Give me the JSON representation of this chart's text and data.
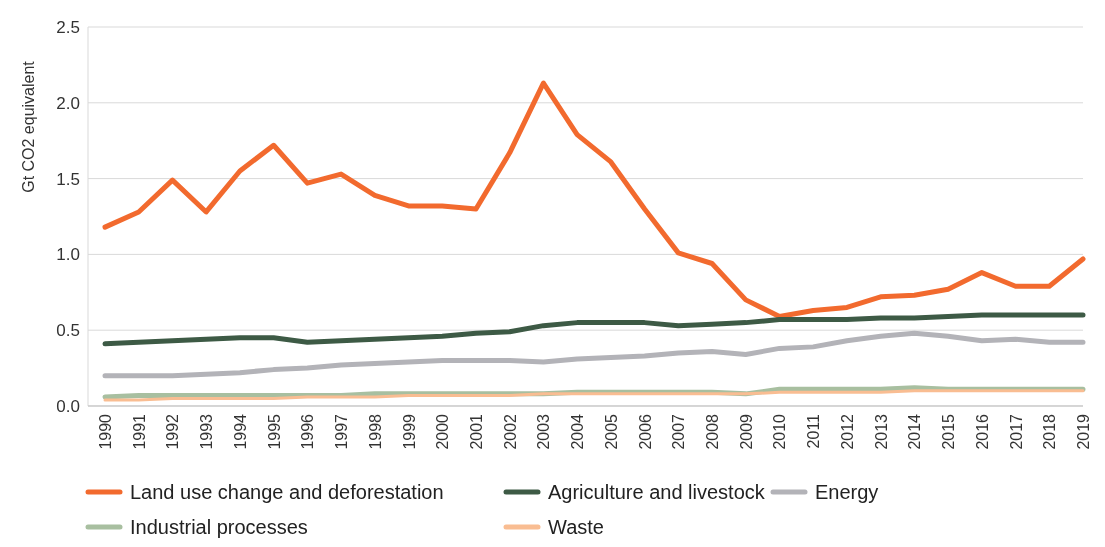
{
  "chart_data": {
    "type": "line",
    "ylabel": "Gt CO2 equivalent",
    "categories": [
      "1990",
      "1991",
      "1992",
      "1993",
      "1994",
      "1995",
      "1996",
      "1997",
      "1998",
      "1999",
      "2000",
      "2001",
      "2002",
      "2003",
      "2004",
      "2005",
      "2006",
      "2007",
      "2008",
      "2009",
      "2010",
      "2011",
      "2012",
      "2013",
      "2014",
      "2015",
      "2016",
      "2017",
      "2018",
      "2019"
    ],
    "ylim": [
      0,
      2.5
    ],
    "yticks": [
      {
        "value": 0,
        "label": "0.0"
      },
      {
        "value": 0.5,
        "label": "0.5"
      },
      {
        "value": 1,
        "label": "1.0"
      },
      {
        "value": 1.5,
        "label": "1.5"
      },
      {
        "value": 2,
        "label": "2.0"
      },
      {
        "value": 2.5,
        "label": "2.5"
      }
    ],
    "grid": "y",
    "legend": "bottom",
    "marker": "none",
    "line_style": "solid",
    "series": [
      {
        "name": "Land use change and deforestation",
        "color": "#f26a2e",
        "values": [
          1.18,
          1.28,
          1.49,
          1.28,
          1.55,
          1.72,
          1.47,
          1.53,
          1.39,
          1.32,
          1.32,
          1.3,
          1.67,
          2.13,
          1.79,
          1.61,
          1.3,
          1.01,
          0.94,
          0.7,
          0.59,
          0.63,
          0.65,
          0.72,
          0.73,
          0.77,
          0.88,
          0.79,
          0.79,
          0.97
        ]
      },
      {
        "name": "Agriculture and livestock",
        "color": "#3d5a45",
        "values": [
          0.41,
          0.42,
          0.43,
          0.44,
          0.45,
          0.45,
          0.42,
          0.43,
          0.44,
          0.45,
          0.46,
          0.48,
          0.49,
          0.53,
          0.55,
          0.55,
          0.55,
          0.53,
          0.54,
          0.55,
          0.57,
          0.57,
          0.57,
          0.58,
          0.58,
          0.59,
          0.6,
          0.6,
          0.6,
          0.6
        ]
      },
      {
        "name": "Energy",
        "color": "#b3b3b8",
        "values": [
          0.2,
          0.2,
          0.2,
          0.21,
          0.22,
          0.24,
          0.25,
          0.27,
          0.28,
          0.29,
          0.3,
          0.3,
          0.3,
          0.29,
          0.31,
          0.32,
          0.33,
          0.35,
          0.36,
          0.34,
          0.38,
          0.39,
          0.43,
          0.46,
          0.48,
          0.46,
          0.43,
          0.44,
          0.42,
          0.42
        ]
      },
      {
        "name": "Industrial processes",
        "color": "#a8bfa0",
        "values": [
          0.06,
          0.07,
          0.07,
          0.07,
          0.07,
          0.07,
          0.07,
          0.07,
          0.08,
          0.08,
          0.08,
          0.08,
          0.08,
          0.08,
          0.09,
          0.09,
          0.09,
          0.09,
          0.09,
          0.08,
          0.11,
          0.11,
          0.11,
          0.11,
          0.12,
          0.11,
          0.11,
          0.11,
          0.11,
          0.11
        ]
      },
      {
        "name": "Waste",
        "color": "#f9bd92",
        "values": [
          0.04,
          0.04,
          0.05,
          0.05,
          0.05,
          0.05,
          0.06,
          0.06,
          0.06,
          0.07,
          0.07,
          0.07,
          0.07,
          0.08,
          0.08,
          0.08,
          0.08,
          0.08,
          0.08,
          0.08,
          0.09,
          0.09,
          0.09,
          0.09,
          0.1,
          0.1,
          0.1,
          0.1,
          0.1,
          0.1
        ]
      }
    ]
  }
}
